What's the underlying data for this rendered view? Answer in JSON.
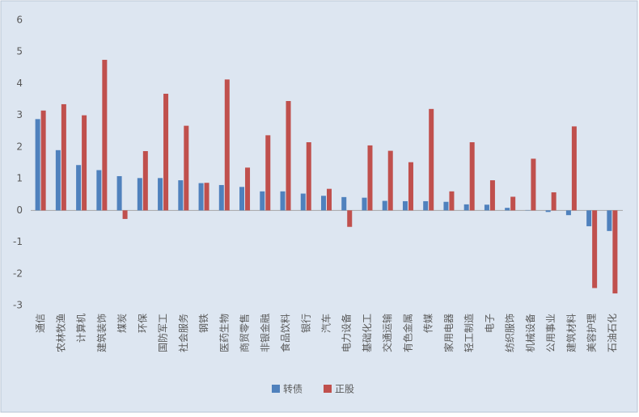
{
  "chart_data": {
    "type": "bar",
    "categories": [
      "通信",
      "农林牧渔",
      "计算机",
      "建筑装饰",
      "煤炭",
      "环保",
      "国防军工",
      "社会服务",
      "钢铁",
      "医药生物",
      "商贸零售",
      "非银金融",
      "食品饮料",
      "银行",
      "汽车",
      "电力设备",
      "基础化工",
      "交通运输",
      "有色金属",
      "传媒",
      "家用电器",
      "轻工制造",
      "电子",
      "纺织服饰",
      "机械设备",
      "公用事业",
      "建筑材料",
      "美容护理",
      "石油石化"
    ],
    "series": [
      {
        "name": "转债",
        "color": "#4f81bd",
        "values": [
          2.88,
          1.9,
          1.43,
          1.27,
          1.08,
          1.02,
          1.02,
          0.95,
          0.86,
          0.8,
          0.74,
          0.6,
          0.6,
          0.53,
          0.46,
          0.42,
          0.4,
          0.3,
          0.29,
          0.29,
          0.27,
          0.19,
          0.18,
          0.08,
          0.01,
          -0.05,
          -0.15,
          -0.5,
          -0.65
        ]
      },
      {
        "name": "正股",
        "color": "#c0504d",
        "values": [
          3.15,
          3.35,
          3.0,
          4.75,
          -0.27,
          1.87,
          3.68,
          2.67,
          0.87,
          4.13,
          1.35,
          2.37,
          3.45,
          2.15,
          0.68,
          -0.52,
          2.05,
          1.88,
          1.52,
          3.2,
          0.6,
          2.15,
          0.95,
          0.43,
          1.63,
          0.57,
          2.65,
          -2.45,
          -2.62
        ]
      }
    ],
    "ylim": [
      -3,
      6
    ],
    "yticks": [
      -3,
      -2,
      -1,
      0,
      1,
      2,
      3,
      4,
      5,
      6
    ],
    "grid": false,
    "legend": "bottom"
  }
}
